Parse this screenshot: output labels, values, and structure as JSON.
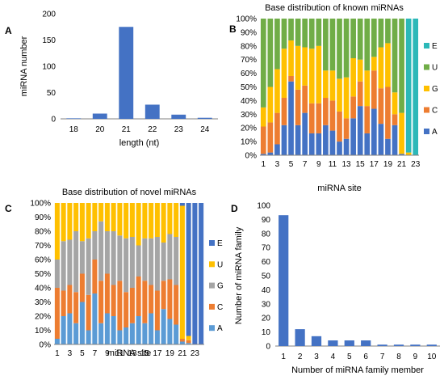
{
  "panels": {
    "a": "A",
    "b": "B",
    "c": "C",
    "d": "D"
  },
  "chart_data": [
    {
      "panel": "A",
      "type": "bar",
      "title": "",
      "xlabel": "length (nt)",
      "ylabel": "miRNA number",
      "categories": [
        "18",
        "20",
        "21",
        "22",
        "23",
        "24"
      ],
      "values": [
        1,
        10,
        175,
        27,
        8,
        2
      ],
      "ylim": [
        0,
        200
      ],
      "yticks": [
        0,
        50,
        100,
        150,
        200
      ],
      "color": "#4472C4",
      "grid": false
    },
    {
      "panel": "B",
      "type": "bar",
      "stacked": "percent",
      "title": "Base distribution of known miRNAs",
      "xlabel": "miRNA site",
      "ylabel": "",
      "x": [
        1,
        2,
        3,
        4,
        5,
        6,
        7,
        8,
        9,
        10,
        11,
        12,
        13,
        14,
        15,
        16,
        17,
        18,
        19,
        20,
        21,
        22,
        23
      ],
      "xtick_labels": [
        "1",
        "3",
        "5",
        "7",
        "9",
        "11",
        "13",
        "15",
        "17",
        "19",
        "21",
        "23"
      ],
      "yticks": [
        "0%",
        "10%",
        "20%",
        "30%",
        "40%",
        "50%",
        "60%",
        "70%",
        "80%",
        "90%",
        "100%"
      ],
      "legend_position": "right",
      "legend": [
        "E",
        "U",
        "G",
        "C",
        "A"
      ],
      "colors": {
        "A": "#4472C4",
        "C": "#ED7D31",
        "G": "#FFC000",
        "U": "#70AD47",
        "E": "#2CB8B8"
      },
      "series": [
        {
          "name": "A",
          "values": [
            1,
            2,
            8,
            22,
            54,
            22,
            31,
            16,
            16,
            22,
            18,
            10,
            12,
            27,
            36,
            16,
            34,
            23,
            12,
            22,
            1,
            0,
            0
          ]
        },
        {
          "name": "C",
          "values": [
            20,
            22,
            23,
            20,
            4,
            26,
            20,
            22,
            22,
            20,
            22,
            22,
            15,
            16,
            18,
            20,
            28,
            26,
            38,
            8,
            0,
            0,
            0
          ]
        },
        {
          "name": "G",
          "values": [
            14,
            26,
            32,
            36,
            26,
            32,
            28,
            40,
            42,
            20,
            22,
            24,
            30,
            28,
            16,
            26,
            10,
            30,
            32,
            16,
            30,
            2,
            0
          ]
        },
        {
          "name": "U",
          "values": [
            65,
            50,
            37,
            22,
            16,
            20,
            21,
            22,
            20,
            38,
            38,
            44,
            43,
            29,
            30,
            38,
            28,
            21,
            18,
            54,
            69,
            0,
            0
          ]
        },
        {
          "name": "E",
          "values": [
            0,
            0,
            0,
            0,
            0,
            0,
            0,
            0,
            0,
            0,
            0,
            0,
            0,
            0,
            0,
            0,
            0,
            0,
            0,
            0,
            0,
            98,
            100
          ]
        }
      ]
    },
    {
      "panel": "C",
      "type": "bar",
      "stacked": "percent",
      "title": "Base distribution of novel miRNAs",
      "xlabel": "miRNA site",
      "ylabel": "",
      "x": [
        1,
        2,
        3,
        4,
        5,
        6,
        7,
        8,
        9,
        10,
        11,
        12,
        13,
        14,
        15,
        16,
        17,
        18,
        19,
        20,
        21,
        22,
        23,
        24
      ],
      "xtick_labels": [
        "1",
        "3",
        "5",
        "7",
        "9",
        "11",
        "13",
        "15",
        "17",
        "19",
        "21",
        "23"
      ],
      "yticks": [
        "0%",
        "10%",
        "20%",
        "30%",
        "40%",
        "50%",
        "60%",
        "70%",
        "80%",
        "90%",
        "100%"
      ],
      "legend_position": "right",
      "legend": [
        "E",
        "U",
        "G",
        "C",
        "A"
      ],
      "colors": {
        "A": "#5B9BD5",
        "C": "#ED7D31",
        "G": "#A5A5A5",
        "U": "#FFC000",
        "E": "#4472C4"
      },
      "series": [
        {
          "name": "A",
          "values": [
            4,
            20,
            22,
            15,
            30,
            10,
            36,
            15,
            22,
            20,
            10,
            12,
            15,
            20,
            15,
            22,
            10,
            25,
            18,
            14,
            2,
            1,
            0,
            0
          ]
        },
        {
          "name": "C",
          "values": [
            36,
            18,
            20,
            22,
            20,
            25,
            24,
            30,
            28,
            22,
            35,
            25,
            25,
            28,
            30,
            20,
            28,
            20,
            28,
            28,
            2,
            2,
            0,
            0
          ]
        },
        {
          "name": "G",
          "values": [
            20,
            35,
            32,
            43,
            23,
            40,
            20,
            42,
            30,
            38,
            32,
            38,
            36,
            22,
            30,
            33,
            38,
            27,
            32,
            34,
            0,
            0,
            0,
            0
          ]
        },
        {
          "name": "U",
          "values": [
            40,
            27,
            26,
            20,
            27,
            25,
            20,
            13,
            20,
            20,
            23,
            25,
            24,
            30,
            25,
            25,
            24,
            28,
            22,
            24,
            94,
            3,
            0,
            0
          ]
        },
        {
          "name": "E",
          "values": [
            0,
            0,
            0,
            0,
            0,
            0,
            0,
            0,
            0,
            0,
            0,
            0,
            0,
            0,
            0,
            0,
            0,
            0,
            0,
            0,
            2,
            94,
            100,
            100
          ]
        }
      ]
    },
    {
      "panel": "D",
      "type": "bar",
      "title": "",
      "xlabel": "Number of miRNA family member",
      "ylabel": "Number of miRNA family",
      "categories": [
        "1",
        "2",
        "3",
        "4",
        "5",
        "6",
        "7",
        "8",
        "9",
        "10"
      ],
      "values": [
        93,
        12,
        7,
        4,
        4,
        4,
        1,
        1,
        1,
        1
      ],
      "ylim": [
        0,
        100
      ],
      "yticks": [
        0,
        10,
        20,
        30,
        40,
        50,
        60,
        70,
        80,
        90,
        100
      ],
      "color": "#4472C4",
      "grid": false
    }
  ]
}
